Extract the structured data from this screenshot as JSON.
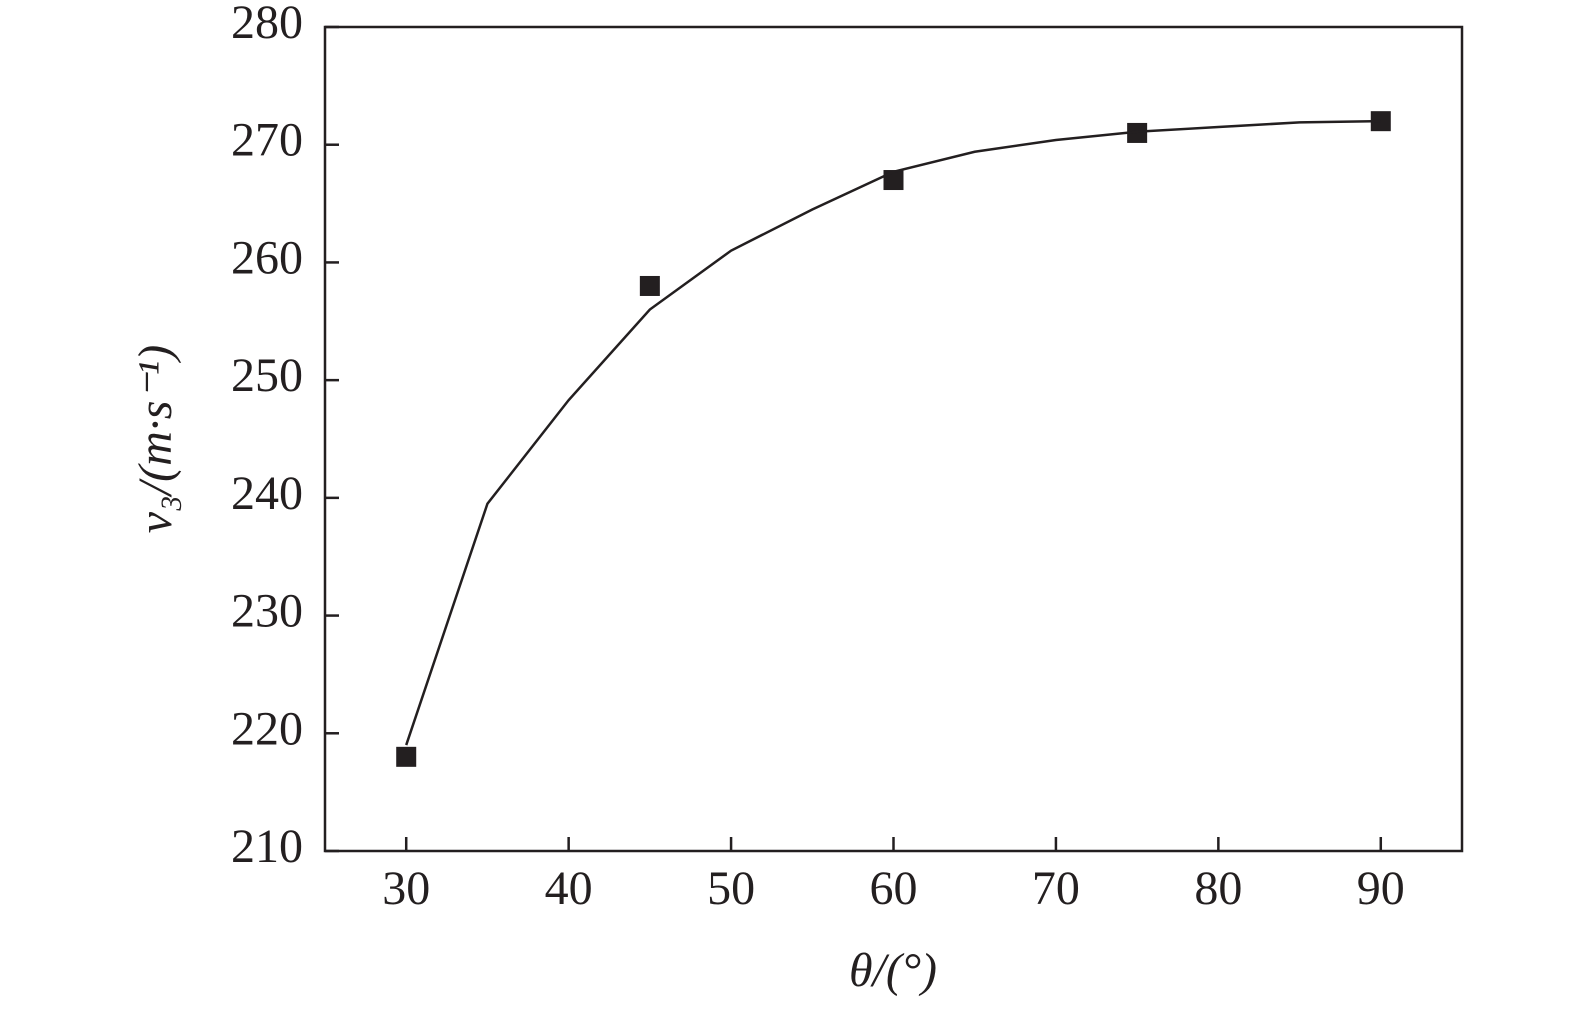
{
  "chart_data": {
    "type": "scatter",
    "x_label": "θ/(°)",
    "y_label": "v₃/(m·s⁻¹)",
    "series": [
      {
        "style": "marker",
        "marker": "square",
        "color": "#231f20",
        "x": [
          30,
          45,
          60,
          75,
          90
        ],
        "values": [
          218,
          258,
          267,
          271,
          272
        ]
      },
      {
        "style": "line",
        "color": "#231f20",
        "x": [
          30,
          35,
          40,
          45,
          50,
          55,
          60,
          65,
          70,
          75,
          80,
          85,
          90
        ],
        "values": [
          219,
          239.5,
          248.3,
          256,
          261,
          264.5,
          267.7,
          269.4,
          270.4,
          271.1,
          271.5,
          271.9,
          272
        ]
      }
    ],
    "xlim": [
      25,
      95
    ],
    "xticks": [
      30,
      40,
      50,
      60,
      70,
      80,
      90
    ],
    "ylim": [
      210,
      280
    ],
    "yticks": [
      210,
      220,
      230,
      240,
      250,
      260,
      270,
      280
    ],
    "grid": false
  }
}
